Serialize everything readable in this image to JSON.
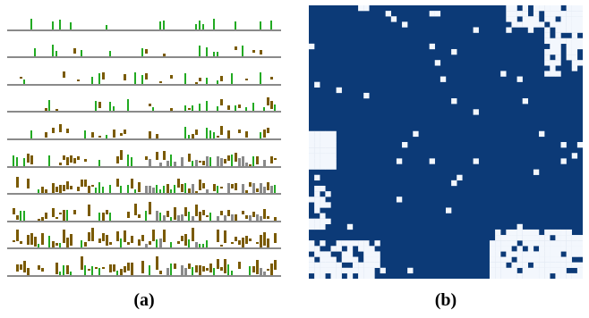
{
  "figure": {
    "panels": [
      {
        "id": "a",
        "caption": "(a)"
      },
      {
        "id": "b",
        "caption": "(b)"
      }
    ]
  },
  "colors": {
    "background": "#ffffff",
    "terrain": "#8a8a8a",
    "pipe_green": "#22aa22",
    "brick_brown": "#7a5a00",
    "map_dark": "#0c3a77",
    "map_light": "#f3f7fd"
  }
}
